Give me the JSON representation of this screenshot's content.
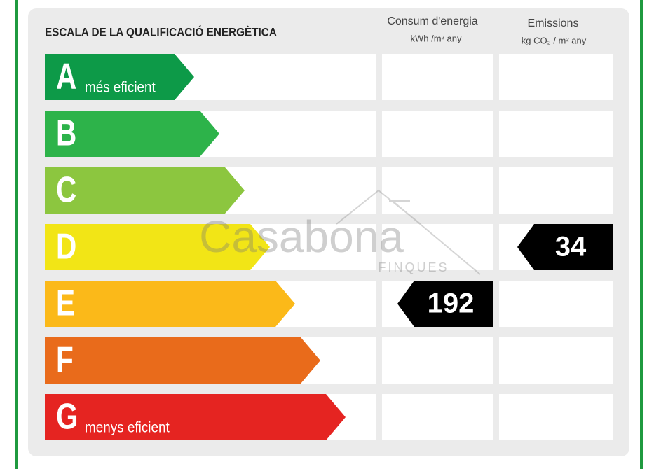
{
  "header": {
    "title": "ESCALA DE LA QUALIFICACIÓ ENERGÈTICA",
    "energy_column": {
      "title": "Consum d'energia",
      "unit": "kWh /m² any"
    },
    "emissions_column": {
      "title": "Emissions",
      "unit": "kg CO₂ / m² any"
    }
  },
  "rows": [
    {
      "letter": "A",
      "label": "més eficient",
      "color": "#0d9a48"
    },
    {
      "letter": "B",
      "color": "#2db34a"
    },
    {
      "letter": "C",
      "color": "#8cc63f"
    },
    {
      "letter": "D",
      "color": "#f2e516",
      "emissions": 34
    },
    {
      "letter": "E",
      "color": "#fbb919",
      "energy": 192
    },
    {
      "letter": "F",
      "color": "#e96b1b"
    },
    {
      "letter": "G",
      "label": "menys eficient",
      "color": "#e52421"
    }
  ],
  "watermark": {
    "name": "Casabona",
    "sub": "FINQUES"
  }
}
